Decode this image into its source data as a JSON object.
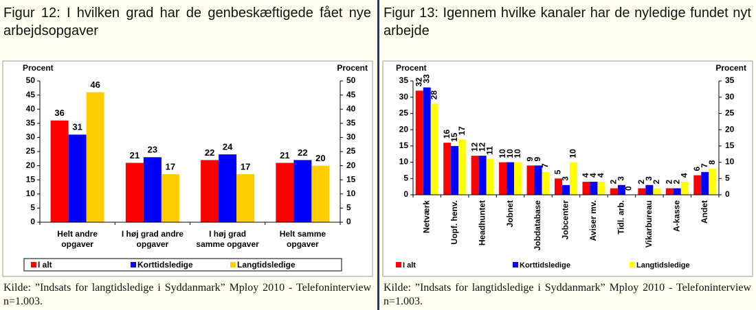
{
  "chart_data": [
    {
      "type": "bar",
      "title": "Figur 12: I hvilken grad har de genbeskæftigede fået nye arbejdsopgaver",
      "y_label": "Procent",
      "y2_label": "Procent",
      "categories": [
        [
          "Helt andre",
          "opgaver"
        ],
        [
          "I høj grad andre",
          "opgaver"
        ],
        [
          "I høj grad",
          "samme opgaver"
        ],
        [
          "Helt samme",
          "opgaver"
        ]
      ],
      "series": [
        {
          "name": "I alt",
          "color": "#ff0000",
          "values": [
            36,
            21,
            22,
            21
          ]
        },
        {
          "name": "Korttidsledige",
          "color": "#0000ff",
          "values": [
            31,
            23,
            24,
            22
          ]
        },
        {
          "name": "Langtidsledige",
          "color": "#ffcc00",
          "values": [
            46,
            17,
            17,
            20
          ]
        }
      ],
      "ylim": [
        0,
        50
      ],
      "yticks": [
        0,
        5,
        10,
        15,
        20,
        25,
        30,
        35,
        40,
        45,
        50
      ],
      "y2lim": [
        0,
        50
      ],
      "y2ticks": [
        0,
        5,
        10,
        15,
        20,
        25,
        30,
        35,
        40,
        45,
        50
      ],
      "label_rotation": 0,
      "category_rotation": 0,
      "legend_box": true,
      "source": "Kilde: ”Indsats for langtidsledige i Syddanmark” Mploy 2010 - Telefoninterview n=1.003."
    },
    {
      "type": "bar",
      "title": "Figur 13: Igennem hvilke kanaler har de nyledige fundet nyt arbejde",
      "y_label": "Procent",
      "y2_label": "Procent",
      "categories": [
        [
          "Netværk"
        ],
        [
          "Uopf. henv."
        ],
        [
          "Headhuntet"
        ],
        [
          "Jobnet"
        ],
        [
          "Jobdatabase"
        ],
        [
          "Jobcenter"
        ],
        [
          "Aviser mv."
        ],
        [
          "Tidl. arb."
        ],
        [
          "Vikarbureau"
        ],
        [
          "A-kasse"
        ],
        [
          "Andet"
        ]
      ],
      "series": [
        {
          "name": "I alt",
          "color": "#ff0000",
          "values": [
            32,
            16,
            12,
            10,
            9,
            5,
            4,
            2,
            2,
            2,
            6
          ]
        },
        {
          "name": "Korttidsledige",
          "color": "#0000ff",
          "values": [
            33,
            15,
            12,
            10,
            9,
            3,
            4,
            3,
            3,
            2,
            7
          ]
        },
        {
          "name": "Langtidsledige",
          "color": "#ffff00",
          "values": [
            28,
            17,
            11,
            10,
            7,
            10,
            4,
            0,
            2,
            4,
            8
          ]
        }
      ],
      "ylim": [
        0,
        35
      ],
      "yticks": [
        0,
        5,
        10,
        15,
        20,
        25,
        30,
        35
      ],
      "y2lim": [
        0,
        35
      ],
      "y2ticks": [
        0,
        5,
        10,
        15,
        20,
        25,
        30,
        35
      ],
      "label_rotation": -90,
      "category_rotation": -90,
      "legend_box": false,
      "source": "Kilde: ”Indsats for langtidsledige i Syddanmark” Mploy 2010 - Telefoninterview n=1.003."
    }
  ]
}
